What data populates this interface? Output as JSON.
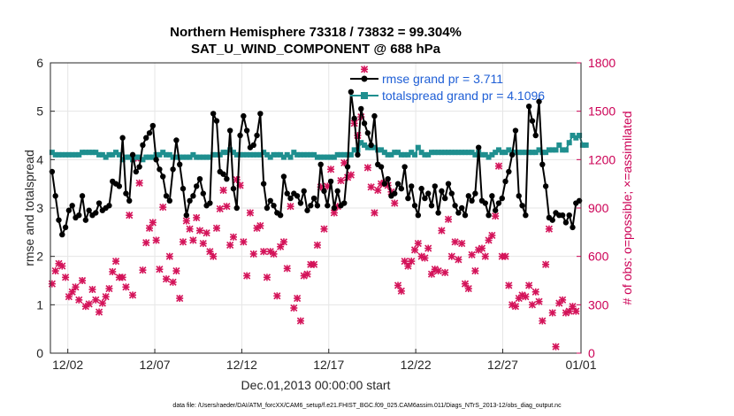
{
  "chart_data": {
    "type": "line",
    "title_line1": "Northern Hemisphere 73318 / 73832 = 99.304%",
    "title_line2": "SAT_U_WIND_COMPONENT @ 688 hPa",
    "xlabel": "Dec.01,2013 00:00:00 start",
    "ylabel_left": "rmse and totalspread",
    "ylabel_right": "# of obs: o=possible; ×=assimilated",
    "footer": "data file: /Users/raeder/DAI/ATM_forcXX/CAM6_setup/f.e21.FHIST_BGC.f09_025.CAM6assim.011/Diags_NTrS_2013-12/obs_diag_output.nc",
    "xlim": [
      0.5,
      31.0
    ],
    "ylim_left": [
      0,
      6
    ],
    "ylim_right": [
      0,
      1800
    ],
    "xticks": [
      1.5,
      6.5,
      11.5,
      16.5,
      21.5,
      26.5,
      31.0
    ],
    "xtick_labels": [
      "12/02",
      "12/07",
      "12/12",
      "12/17",
      "12/22",
      "12/27",
      "01/01"
    ],
    "yticks_left": [
      0,
      1,
      2,
      3,
      4,
      5,
      6
    ],
    "yticks_right": [
      0,
      300,
      600,
      900,
      1200,
      1500,
      1800
    ],
    "legend": [
      {
        "name": "rmse grand pr = 3.711",
        "color": "#000000"
      },
      {
        "name": "totalspread grand pr = 4.1096",
        "color": "#1f8f8f"
      }
    ],
    "colors": {
      "rmse": "#000000",
      "spread": "#1f8f8f",
      "obs": "#d4145a",
      "grid": "#e6e6e6"
    },
    "rmse": [
      3.75,
      3.25,
      2.75,
      2.45,
      2.6,
      2.95,
      3.05,
      2.8,
      2.85,
      3.25,
      2.75,
      2.95,
      2.85,
      2.9,
      3.1,
      2.95,
      3.0,
      3.05,
      3.55,
      3.5,
      3.45,
      4.45,
      3.3,
      3.15,
      4.1,
      3.75,
      3.85,
      4.3,
      4.45,
      4.55,
      4.7,
      4.0,
      3.8,
      3.65,
      3.25,
      3.15,
      3.8,
      4.4,
      3.9,
      3.4,
      2.85,
      3.15,
      3.25,
      3.45,
      3.6,
      3.3,
      3.05,
      3.1,
      4.95,
      4.8,
      3.75,
      3.7,
      3.6,
      4.6,
      3.4,
      3.0,
      4.5,
      4.9,
      4.6,
      4.25,
      4.3,
      4.5,
      4.95,
      3.5,
      3.0,
      3.15,
      3.05,
      2.9,
      2.85,
      3.65,
      3.3,
      3.2,
      3.3,
      3.25,
      3.1,
      3.35,
      2.95,
      3.05,
      3.2,
      3.05,
      3.9,
      3.35,
      3.05,
      3.55,
      3.0,
      3.35,
      3.05,
      3.1,
      3.85,
      5.4,
      4.85,
      4.1,
      5.05,
      4.75,
      4.55,
      4.3,
      4.9,
      3.9,
      3.85,
      3.5,
      3.6,
      3.25,
      3.3,
      3.5,
      3.4,
      3.85,
      3.2,
      3.45,
      3.05,
      2.85,
      3.4,
      3.2,
      3.3,
      3.05,
      3.45,
      2.9,
      3.35,
      3.2,
      3.5,
      3.3,
      3.05,
      2.9,
      3.0,
      2.85,
      3.25,
      3.15,
      3.3,
      4.25,
      3.15,
      3.1,
      2.85,
      3.25,
      2.95,
      3.1,
      3.2,
      3.55,
      3.75,
      4.1,
      4.6,
      3.25,
      3.05,
      2.85,
      5.1,
      4.8,
      4.5,
      5.2,
      3.9,
      3.45,
      2.8,
      2.75,
      2.9,
      2.85,
      2.85,
      2.7,
      2.85,
      2.6,
      3.1,
      3.15
    ],
    "spread": [
      4.15,
      4.1,
      4.1,
      4.1,
      4.1,
      4.1,
      4.1,
      4.1,
      4.1,
      4.15,
      4.15,
      4.15,
      4.15,
      4.15,
      4.1,
      4.1,
      4.05,
      4.1,
      4.1,
      4.15,
      4.1,
      4.0,
      4.05,
      4.05,
      4.0,
      4.05,
      4.05,
      4.0,
      4.05,
      4.05,
      4.05,
      4.1,
      4.1,
      4.15,
      4.1,
      4.1,
      4.05,
      4.05,
      4.05,
      4.05,
      4.05,
      4.05,
      4.1,
      4.05,
      4.05,
      4.05,
      4.05,
      4.05,
      4.1,
      4.1,
      4.1,
      4.15,
      4.15,
      4.2,
      4.15,
      4.1,
      4.1,
      4.1,
      4.1,
      4.1,
      4.1,
      4.1,
      4.1,
      4.15,
      4.1,
      4.05,
      4.1,
      4.1,
      4.1,
      4.05,
      4.1,
      4.05,
      4.15,
      4.1,
      4.1,
      4.1,
      4.1,
      4.1,
      4.1,
      4.05,
      4.05,
      4.05,
      4.05,
      4.05,
      4.05,
      4.1,
      4.1,
      4.1,
      4.1,
      4.1,
      4.2,
      4.2,
      4.35,
      4.3,
      4.25,
      4.25,
      4.25,
      4.2,
      4.2,
      4.15,
      4.1,
      4.1,
      4.15,
      4.15,
      4.1,
      4.1,
      4.1,
      4.15,
      4.1,
      4.25,
      4.15,
      4.1,
      4.1,
      4.15,
      4.15,
      4.15,
      4.15,
      4.15,
      4.15,
      4.15,
      4.15,
      4.15,
      4.15,
      4.15,
      4.15,
      4.15,
      4.1,
      4.15,
      4.1,
      4.1,
      4.05,
      4.1,
      4.15,
      4.2,
      4.15,
      4.15,
      4.2,
      4.15,
      4.15,
      4.15,
      4.15,
      4.15,
      4.15,
      4.15,
      4.15,
      4.2,
      4.15,
      4.15,
      4.2,
      4.2,
      4.2,
      4.3,
      4.2,
      4.2,
      4.35,
      4.5,
      4.45,
      4.5,
      4.3,
      4.3
    ],
    "obs_assimilated": [
      430,
      510,
      555,
      540,
      470,
      350,
      380,
      410,
      330,
      450,
      290,
      305,
      395,
      330,
      255,
      310,
      350,
      400,
      505,
      570,
      470,
      470,
      410,
      855,
      360,
      1210,
      1055,
      515,
      685,
      775,
      810,
      700,
      520,
      905,
      460,
      600,
      440,
      510,
      340,
      690,
      820,
      770,
      700,
      840,
      760,
      680,
      745,
      630,
      600,
      775,
      895,
      1010,
      910,
      670,
      720,
      1075,
      1040,
      690,
      480,
      870,
      615,
      775,
      790,
      630,
      470,
      630,
      615,
      355,
      660,
      690,
      525,
      910,
      280,
      340,
      200,
      480,
      490,
      550,
      550,
      670,
      1030,
      770,
      1035,
      1140,
      870,
      910,
      1070,
      1180,
      1090,
      1105,
      1425,
      1350,
      1465,
      1760,
      1150,
      1030,
      870,
      1010,
      1050,
      1055,
      1040,
      1000,
      930,
      420,
      385,
      570,
      540,
      570,
      640,
      680,
      600,
      590,
      650,
      490,
      520,
      510,
      760,
      500,
      830,
      600,
      690,
      580,
      680,
      430,
      400,
      610,
      510,
      640,
      650,
      600,
      700,
      730,
      850,
      1160,
      600,
      600,
      420,
      300,
      290,
      340,
      360,
      350,
      420,
      300,
      380,
      320,
      200,
      550,
      770,
      250,
      40,
      310,
      330,
      250,
      260,
      290,
      260
    ]
  }
}
